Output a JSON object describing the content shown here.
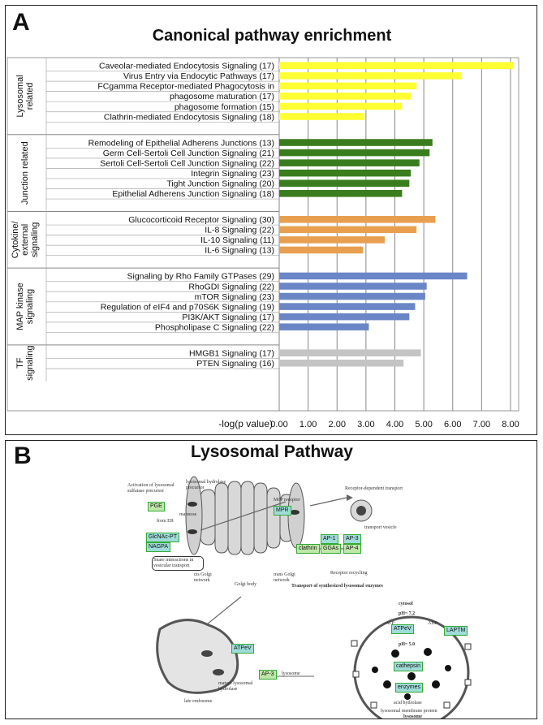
{
  "panel_a": {
    "letter": "A",
    "title": "Canonical pathway enrichment"
  },
  "chart_data": {
    "type": "bar",
    "orientation": "horizontal",
    "title": "Canonical pathway enrichment",
    "xlabel": "-log(p value)",
    "xlim": [
      0,
      8.4
    ],
    "xticks": [
      "0.00",
      "1.00",
      "2.00",
      "3.00",
      "4.00",
      "5.00",
      "6.00",
      "7.00",
      "8.00"
    ],
    "grid": true,
    "groups": [
      {
        "name": "Lysosomal related",
        "label_lines": [
          "Lysosomal",
          "related"
        ],
        "color": "#ffff33",
        "items": [
          {
            "label": "Caveolar-mediated Endocytosis Signaling (17)",
            "value": 8.1
          },
          {
            "label": "Virus Entry via Endocytic Pathways (17)",
            "value": 6.3
          },
          {
            "label": "FCgamma Receptor-mediated Phagocytosis in",
            "value": 4.75
          },
          {
            "label": "phagosome maturation (17)",
            "value": 4.55
          },
          {
            "label": "phagosome formation (15)",
            "value": 4.25
          },
          {
            "label": "Clathrin-mediated Endocytosis Signaling (18)",
            "value": 2.95
          }
        ]
      },
      {
        "name": "Junction related",
        "label_lines": [
          "Junction related"
        ],
        "color": "#3a7d1e",
        "items": [
          {
            "label": "Remodeling of Epithelial Adherens Junctions (13)",
            "value": 5.3
          },
          {
            "label": "Germ Cell-Sertoli Cell Junction Signaling (21)",
            "value": 5.2
          },
          {
            "label": "Sertoli Cell-Sertoli Cell Junction Signaling (22)",
            "value": 4.85
          },
          {
            "label": "Integrin Signaling (23)",
            "value": 4.55
          },
          {
            "label": "Tight Junction Signaling (20)",
            "value": 4.5
          },
          {
            "label": "Epithelial Adherens Junction Signaling (18)",
            "value": 4.25
          }
        ]
      },
      {
        "name": "Cytokine/ external signaling",
        "label_lines": [
          "Cytokine/",
          "external",
          "signaling"
        ],
        "color": "#e8a050",
        "items": [
          {
            "label": "Glucocorticoid Receptor Signaling (30)",
            "value": 5.4
          },
          {
            "label": "IL-8 Signaling (22)",
            "value": 4.75
          },
          {
            "label": "IL-10 Signaling (11)",
            "value": 3.65
          },
          {
            "label": "IL-6 Signaling (13)",
            "value": 2.9
          }
        ]
      },
      {
        "name": "MAP kinase signaling",
        "label_lines": [
          "MAP kinase",
          "signaling"
        ],
        "color": "#6a86c6",
        "items": [
          {
            "label": "Signaling by Rho Family GTPases (29)",
            "value": 6.5
          },
          {
            "label": "RhoGDI Signaling (22)",
            "value": 5.1
          },
          {
            "label": "mTOR Signaling (23)",
            "value": 5.05
          },
          {
            "label": "Regulation of eIF4 and p70S6K Signaling (19)",
            "value": 4.7
          },
          {
            "label": "PI3K/AKT Signaling (17)",
            "value": 4.5
          },
          {
            "label": "Phospholipase C Signaling (22)",
            "value": 3.1
          }
        ]
      },
      {
        "name": "TF signaling",
        "label_lines": [
          "TF",
          "signaling"
        ],
        "color": "#c4c4c4",
        "items": [
          {
            "label": "HMGB1 Signaling (17)",
            "value": 4.9
          },
          {
            "label": "PTEN Signaling (16)",
            "value": 4.3
          }
        ]
      }
    ]
  },
  "panel_b": {
    "letter": "B",
    "title": "Lysosomal Pathway",
    "gene_boxes": {
      "pge": "PGE",
      "qppt": "GlcNAc-PT",
      "nagpa": "NAGPA",
      "mpr": "MPR",
      "ap1": "AP-1",
      "ap3": "AP-3",
      "ggas": "GGAs",
      "ap4": "AP-4",
      "clathrin": "clathrin",
      "atpv": "ATPeV",
      "ap3b": "AP-3",
      "atpv2": "ATPeV",
      "lapm": "LAPTM",
      "cathepsin": "cathepsin",
      "enzymes": "enzymes"
    },
    "annotations": {
      "activation": "Activation of lysosomal sulfatase precursor",
      "lys_precursor": "lysosomal hydrolase precursor",
      "from_er": "from ER",
      "mannose": "mannose",
      "m6p_receptor": "M6P receptor",
      "receptor_transport": "Receptor-dependent transport",
      "transport_vesicle": "transport vesicle",
      "snare": "Snare interactions in vesicular transport",
      "cis_golgi": "cis Golgi network",
      "golgi_body": "Golgi body",
      "trans_golgi": "trans Golgi network",
      "receptor_recycling": "Receptor recycling",
      "transport_synth": "Transport of synthesized lysosomal enzymes",
      "cytosol": "cytosol",
      "ph72": "pH~ 7.2",
      "atp": "ATP",
      "adp": "ADP",
      "ph50": "pH~ 5.0",
      "lysosome_arrow": "lysosome",
      "late_endosome": "late endosome",
      "mature_hydrolase": "mature lysosomal hydrolase",
      "acid_hydrolase": "acid hydrolase",
      "membrane_protein": "lysosomal membrane protein",
      "lysosome": "lysosome"
    }
  }
}
